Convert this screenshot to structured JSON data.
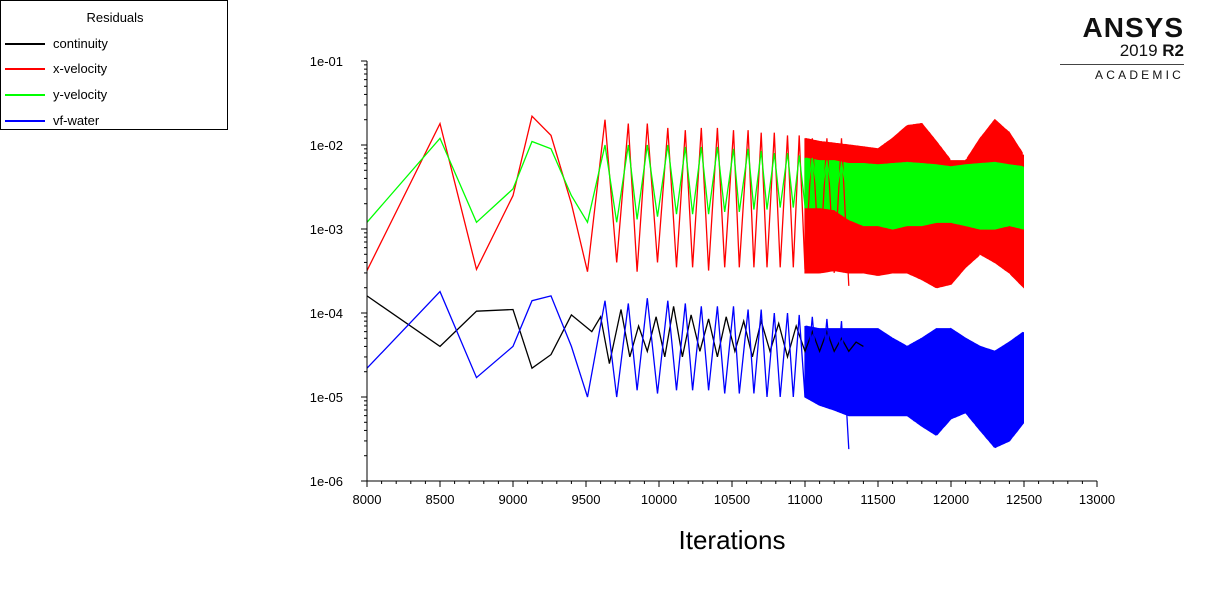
{
  "legend": {
    "title": "Residuals",
    "entries": [
      {
        "label": "continuity",
        "color": "#000000"
      },
      {
        "label": "x-velocity",
        "color": "#ff0000"
      },
      {
        "label": "y-velocity",
        "color": "#00ff00"
      },
      {
        "label": "vf-water",
        "color": "#0000ff"
      }
    ]
  },
  "logo": {
    "name": "ANSYS",
    "version": "2019",
    "release": "R2",
    "subtitle": "ACADEMIC"
  },
  "chart_data": {
    "type": "line",
    "title": "",
    "xlabel": "Iterations",
    "ylabel": "",
    "xlim": [
      8000,
      13000
    ],
    "ylim": [
      1e-06,
      0.1
    ],
    "yscale": "log",
    "grid": false,
    "legend_position": "top-left",
    "x_ticks": [
      8000,
      8500,
      9000,
      9500,
      10000,
      10500,
      11000,
      11500,
      12000,
      12500,
      13000
    ],
    "x_tick_labels": [
      "8000",
      "8500",
      "9000",
      "9500",
      "10000",
      "10500",
      "11000",
      "11500",
      "12000",
      "12500",
      "13000"
    ],
    "y_ticks": [
      1e-06,
      1e-05,
      0.0001,
      0.001,
      0.01,
      0.1
    ],
    "y_tick_labels": [
      "1e-06",
      "1e-05",
      "1e-04",
      "1e-03",
      "1e-02",
      "1e-01"
    ],
    "series": [
      {
        "name": "continuity",
        "color": "#000000",
        "x": [
          8000,
          8500,
          8750,
          9000,
          9130,
          9260,
          9400,
          9540,
          9600,
          9660,
          9740,
          9800,
          9860,
          9920,
          9980,
          10040,
          10100,
          10160,
          10220,
          10280,
          10340,
          10400,
          10460,
          10520,
          10580,
          10640,
          10700,
          10760,
          10820,
          10880,
          10940,
          11000,
          11050,
          11100,
          11150,
          11200,
          11250,
          11300,
          11350,
          11400
        ],
        "y": [
          0.00016,
          4e-05,
          0.000105,
          0.00011,
          2.2e-05,
          3.2e-05,
          9.5e-05,
          6e-05,
          9e-05,
          2.5e-05,
          0.00011,
          3e-05,
          7e-05,
          3.5e-05,
          9e-05,
          3e-05,
          0.00012,
          3e-05,
          9.5e-05,
          3.5e-05,
          8.5e-05,
          3e-05,
          9e-05,
          3.5e-05,
          8e-05,
          3e-05,
          8e-05,
          3.5e-05,
          7.5e-05,
          3e-05,
          7e-05,
          3.5e-05,
          6e-05,
          3.5e-05,
          6e-05,
          3.5e-05,
          5e-05,
          3.5e-05,
          4.5e-05,
          4e-05
        ]
      },
      {
        "name": "x-velocity",
        "color": "#ff0000",
        "x": [
          8000,
          8500,
          8750,
          9000,
          9130,
          9260,
          9400,
          9510,
          9630,
          9710,
          9790,
          9850,
          9920,
          9990,
          10060,
          10120,
          10180,
          10230,
          10290,
          10340,
          10400,
          10450,
          10510,
          10550,
          10610,
          10650,
          10700,
          10740,
          10790,
          10830,
          10880,
          10920,
          10960,
          11000,
          11050,
          11100,
          11150,
          11200,
          11250,
          11300
        ],
        "y": [
          0.00032,
          0.018,
          0.00033,
          0.0025,
          0.022,
          0.013,
          0.002,
          0.00031,
          0.02,
          0.0004,
          0.018,
          0.00031,
          0.018,
          0.0004,
          0.016,
          0.00035,
          0.015,
          0.00035,
          0.016,
          0.00032,
          0.016,
          0.00035,
          0.015,
          0.00035,
          0.015,
          0.00035,
          0.014,
          0.00035,
          0.014,
          0.00035,
          0.013,
          0.00035,
          0.013,
          0.00033,
          0.012,
          0.00033,
          0.012,
          0.0003,
          0.012,
          0.00021
        ]
      },
      {
        "name": "y-velocity",
        "color": "#00ff00",
        "x": [
          8000,
          8500,
          8750,
          9000,
          9130,
          9260,
          9400,
          9510,
          9630,
          9710,
          9790,
          9850,
          9920,
          9990,
          10060,
          10120,
          10180,
          10230,
          10290,
          10340,
          10400,
          10450,
          10510,
          10550,
          10610,
          10650,
          10700,
          10740,
          10790,
          10830,
          10880,
          10920,
          10960,
          11000,
          11050,
          11100,
          11150,
          11200,
          11250,
          11300
        ],
        "y": [
          0.0012,
          0.012,
          0.0012,
          0.003,
          0.011,
          0.009,
          0.0025,
          0.0012,
          0.01,
          0.0012,
          0.01,
          0.0013,
          0.01,
          0.0014,
          0.01,
          0.0015,
          0.0095,
          0.0015,
          0.0095,
          0.0015,
          0.0095,
          0.0016,
          0.009,
          0.0016,
          0.009,
          0.0017,
          0.0085,
          0.0017,
          0.008,
          0.0018,
          0.008,
          0.0018,
          0.0075,
          0.0019,
          0.007,
          0.0019,
          0.0065,
          0.002,
          0.006,
          0.0022
        ]
      },
      {
        "name": "vf-water",
        "color": "#0000ff",
        "x": [
          8000,
          8500,
          8750,
          9000,
          9130,
          9260,
          9400,
          9510,
          9630,
          9710,
          9790,
          9850,
          9920,
          9990,
          10060,
          10120,
          10180,
          10230,
          10290,
          10340,
          10400,
          10450,
          10510,
          10550,
          10610,
          10650,
          10700,
          10740,
          10790,
          10830,
          10880,
          10920,
          10960,
          11000,
          11050,
          11100,
          11150,
          11200,
          11250,
          11300
        ],
        "y": [
          2.2e-05,
          0.00018,
          1.7e-05,
          4e-05,
          0.00014,
          0.00016,
          4e-05,
          1e-05,
          0.00014,
          1e-05,
          0.00013,
          1.2e-05,
          0.00015,
          1.1e-05,
          0.00014,
          1.2e-05,
          0.00013,
          1.2e-05,
          0.00012,
          1.2e-05,
          0.00012,
          1.1e-05,
          0.00012,
          1.1e-05,
          0.00011,
          1.1e-05,
          0.00011,
          1e-05,
          0.0001,
          1e-05,
          0.0001,
          1e-05,
          9.5e-05,
          1e-05,
          9e-05,
          9e-06,
          8.5e-05,
          8e-06,
          8e-05,
          2.4e-06
        ]
      }
    ],
    "bands": [
      {
        "series": "x-velocity",
        "color": "#ff0000",
        "x": [
          11000,
          11100,
          11200,
          11300,
          11400,
          11500,
          11600,
          11700,
          11800,
          11900,
          12000,
          12100,
          12200,
          12300,
          12400,
          12500
        ],
        "upper": [
          0.012,
          0.011,
          0.0105,
          0.01,
          0.0095,
          0.009,
          0.012,
          0.017,
          0.018,
          0.011,
          0.0065,
          0.0065,
          0.012,
          0.02,
          0.014,
          0.0075
        ],
        "lower": [
          0.0003,
          0.0003,
          0.00032,
          0.0003,
          0.0003,
          0.00028,
          0.0003,
          0.0003,
          0.00025,
          0.0002,
          0.00022,
          0.00035,
          0.0005,
          0.0004,
          0.0003,
          0.0002
        ]
      },
      {
        "series": "y-velocity",
        "color": "#00ff00",
        "x": [
          11000,
          11100,
          11200,
          11300,
          11400,
          11500,
          11600,
          11700,
          11800,
          11900,
          12000,
          12100,
          12200,
          12300,
          12400,
          12500
        ],
        "upper": [
          0.007,
          0.0065,
          0.0065,
          0.006,
          0.006,
          0.0058,
          0.006,
          0.0062,
          0.006,
          0.0058,
          0.0055,
          0.0058,
          0.006,
          0.0062,
          0.0058,
          0.0055
        ],
        "lower": [
          0.0018,
          0.0018,
          0.0017,
          0.0013,
          0.0011,
          0.0011,
          0.001,
          0.0011,
          0.0011,
          0.0012,
          0.0012,
          0.0011,
          0.001,
          0.001,
          0.0011,
          0.001
        ]
      },
      {
        "series": "vf-water",
        "color": "#0000ff",
        "x": [
          11000,
          11100,
          11200,
          11300,
          11400,
          11500,
          11600,
          11700,
          11800,
          11900,
          12000,
          12100,
          12200,
          12300,
          12400,
          12500
        ],
        "upper": [
          7e-05,
          6.5e-05,
          6.5e-05,
          6.5e-05,
          6.5e-05,
          6.5e-05,
          5e-05,
          4e-05,
          5e-05,
          6.5e-05,
          6.5e-05,
          5e-05,
          4e-05,
          3.5e-05,
          4.5e-05,
          6e-05
        ],
        "lower": [
          1e-05,
          8e-06,
          7e-06,
          6e-06,
          6e-06,
          6e-06,
          6e-06,
          6e-06,
          4.5e-06,
          3.5e-06,
          5.5e-06,
          6.5e-06,
          4e-06,
          2.5e-06,
          3e-06,
          5e-06
        ]
      }
    ]
  }
}
